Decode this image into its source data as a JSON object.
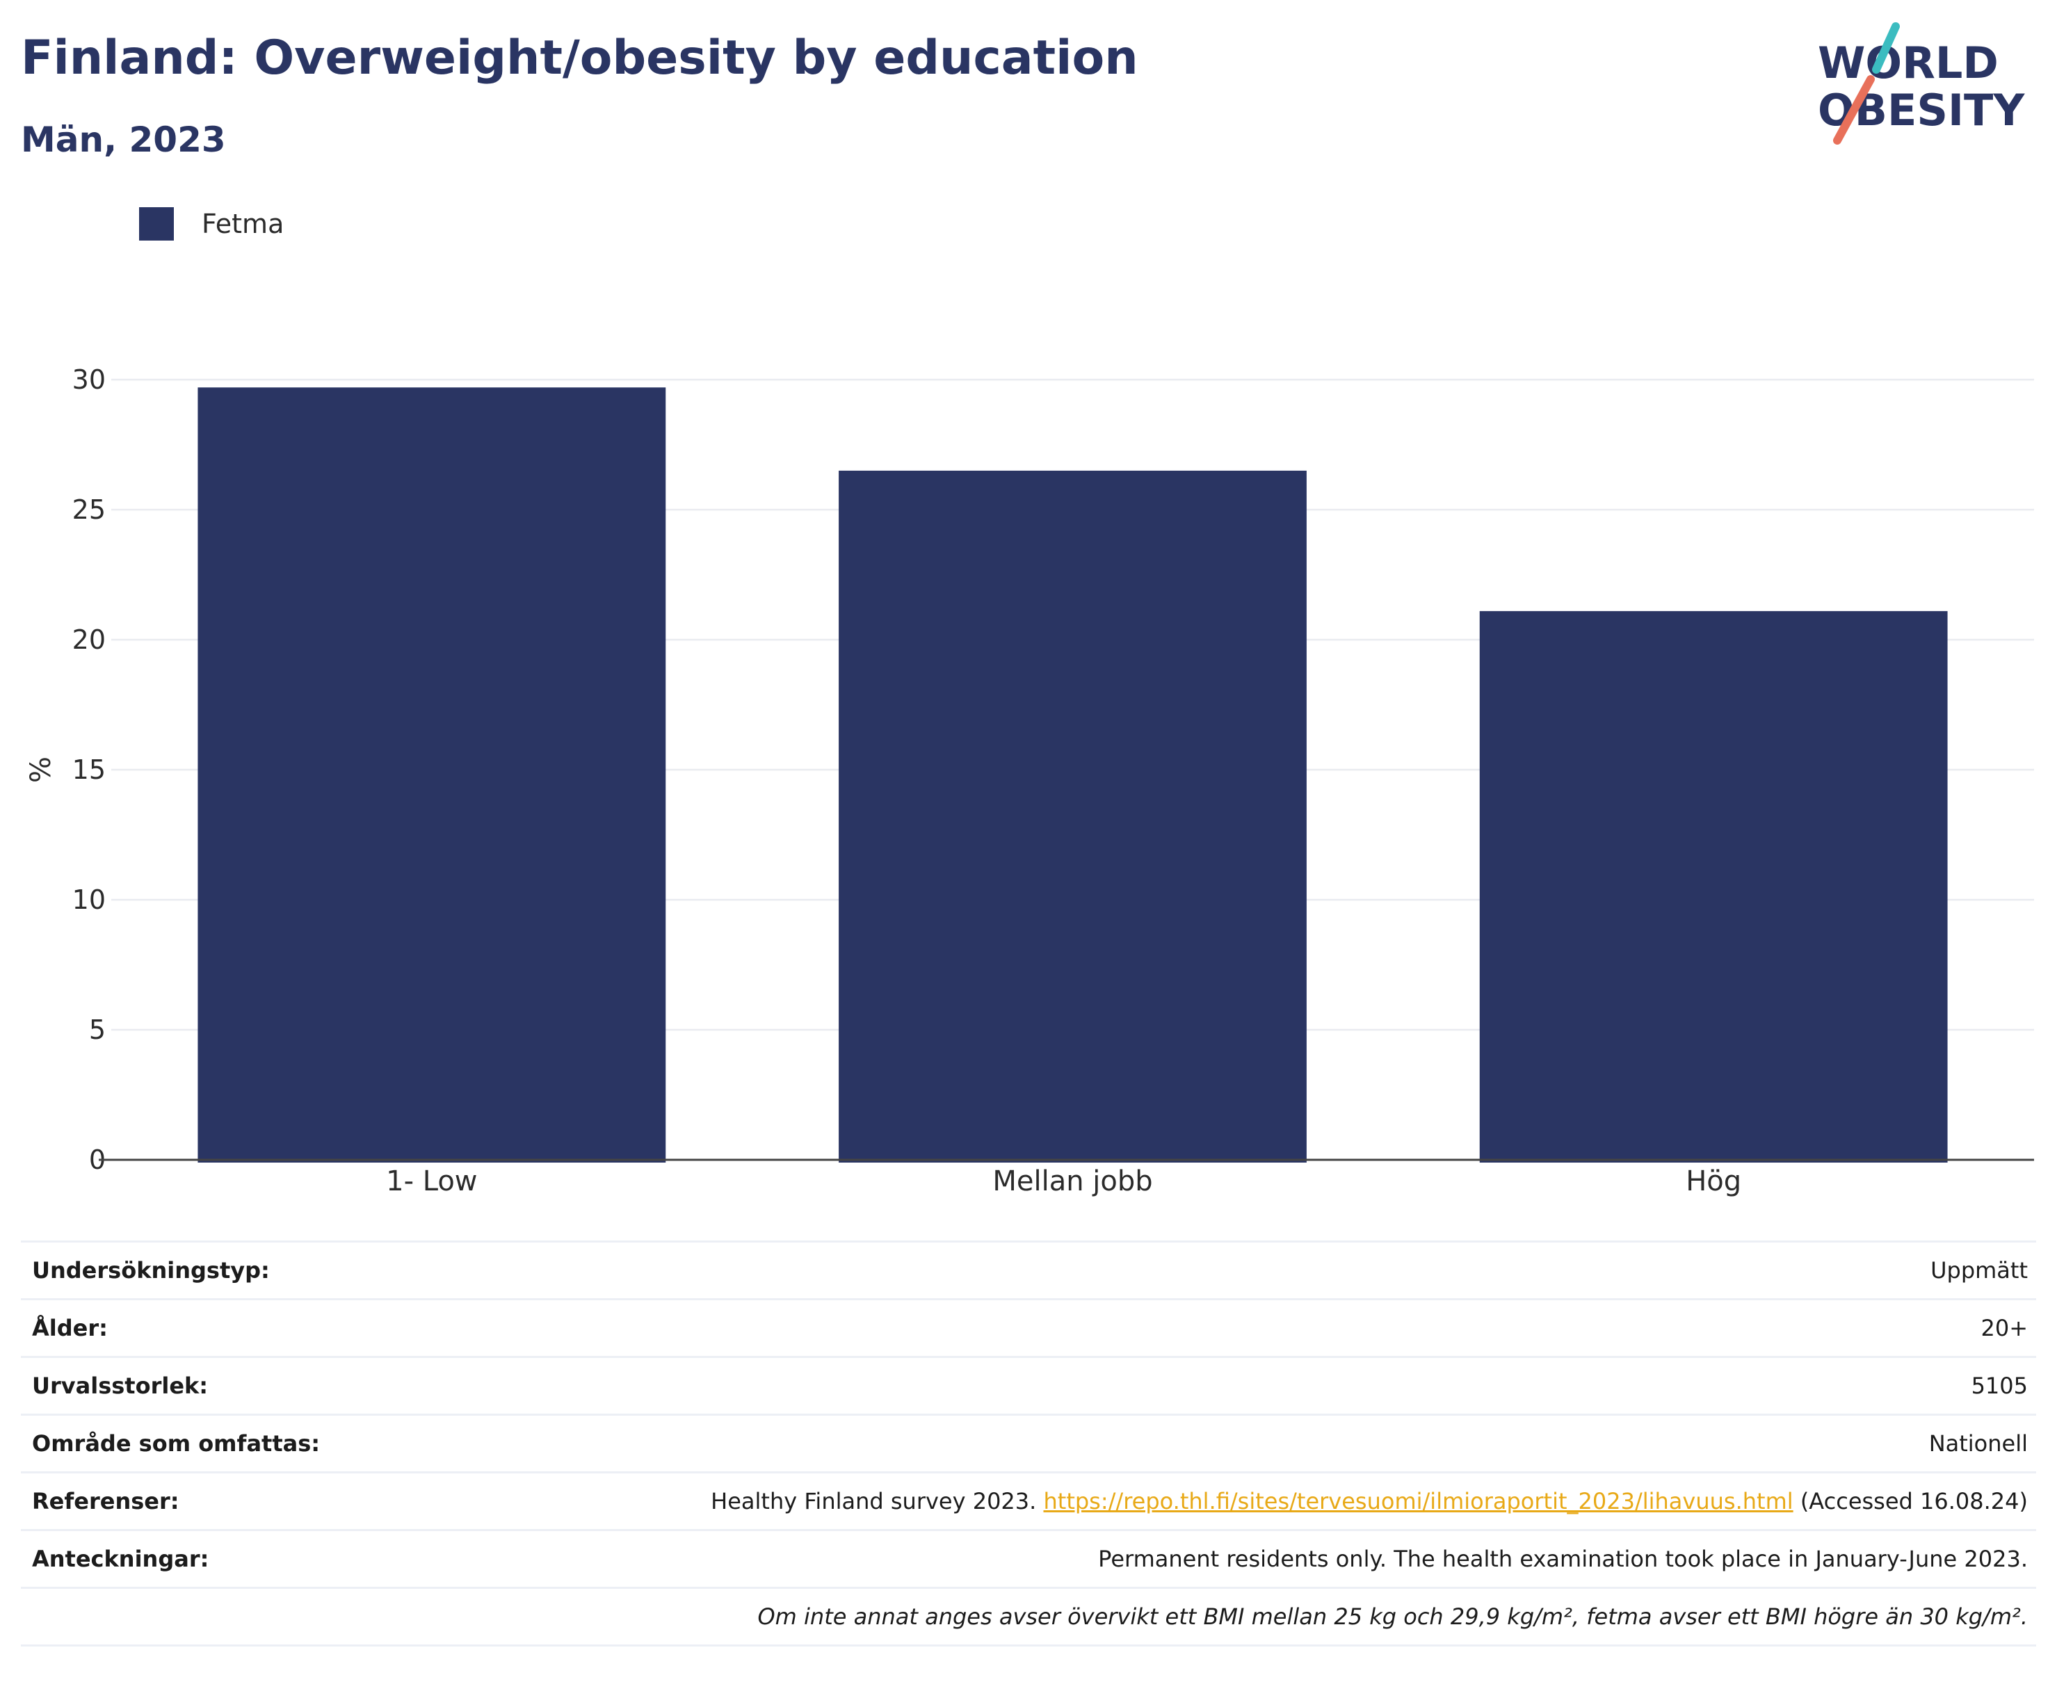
{
  "header": {
    "title": "Finland: Overweight/obesity by education",
    "subtitle": "Män, 2023"
  },
  "logo": {
    "line1": "WORLD",
    "line2": "OBESITY",
    "accent_teal": "#3bbcc0",
    "accent_coral": "#e8705a"
  },
  "legend": {
    "items": [
      {
        "label": "Fetma",
        "color": "#2a3563"
      }
    ]
  },
  "chart_data": {
    "type": "bar",
    "categories": [
      "1- Low",
      "Mellan jobb",
      "Hög"
    ],
    "series": [
      {
        "name": "Fetma",
        "values": [
          29.7,
          26.5,
          21.1
        ],
        "color": "#2a3563"
      }
    ],
    "ylabel": "%",
    "xlabel": "",
    "ylim": [
      0,
      30
    ],
    "yticks": [
      0,
      5,
      10,
      15,
      20,
      25,
      30
    ],
    "grid": true,
    "legend_position": "top-left"
  },
  "info": {
    "rows": [
      {
        "label": "Undersökningstyp:",
        "value": "Uppmätt"
      },
      {
        "label": "Ålder:",
        "value": "20+"
      },
      {
        "label": "Urvalsstorlek:",
        "value": "5105"
      },
      {
        "label": "Område som omfattas:",
        "value": "Nationell"
      }
    ],
    "references": {
      "label": "Referenser:",
      "prefix": "Healthy Finland survey 2023.",
      "link": "https://repo.thl.fi/sites/tervesuomi/ilmioraportit_2023/lihavuus.html",
      "suffix": "(Accessed 16.08.24)"
    },
    "notes": {
      "label": "Anteckningar:",
      "value": "Permanent residents only. The health examination took place in January-June 2023."
    },
    "footnote": "Om inte annat anges avser övervikt ett BMI mellan 25 kg och 29,9 kg/m², fetma avser ett BMI högre än 30 kg/m²."
  }
}
